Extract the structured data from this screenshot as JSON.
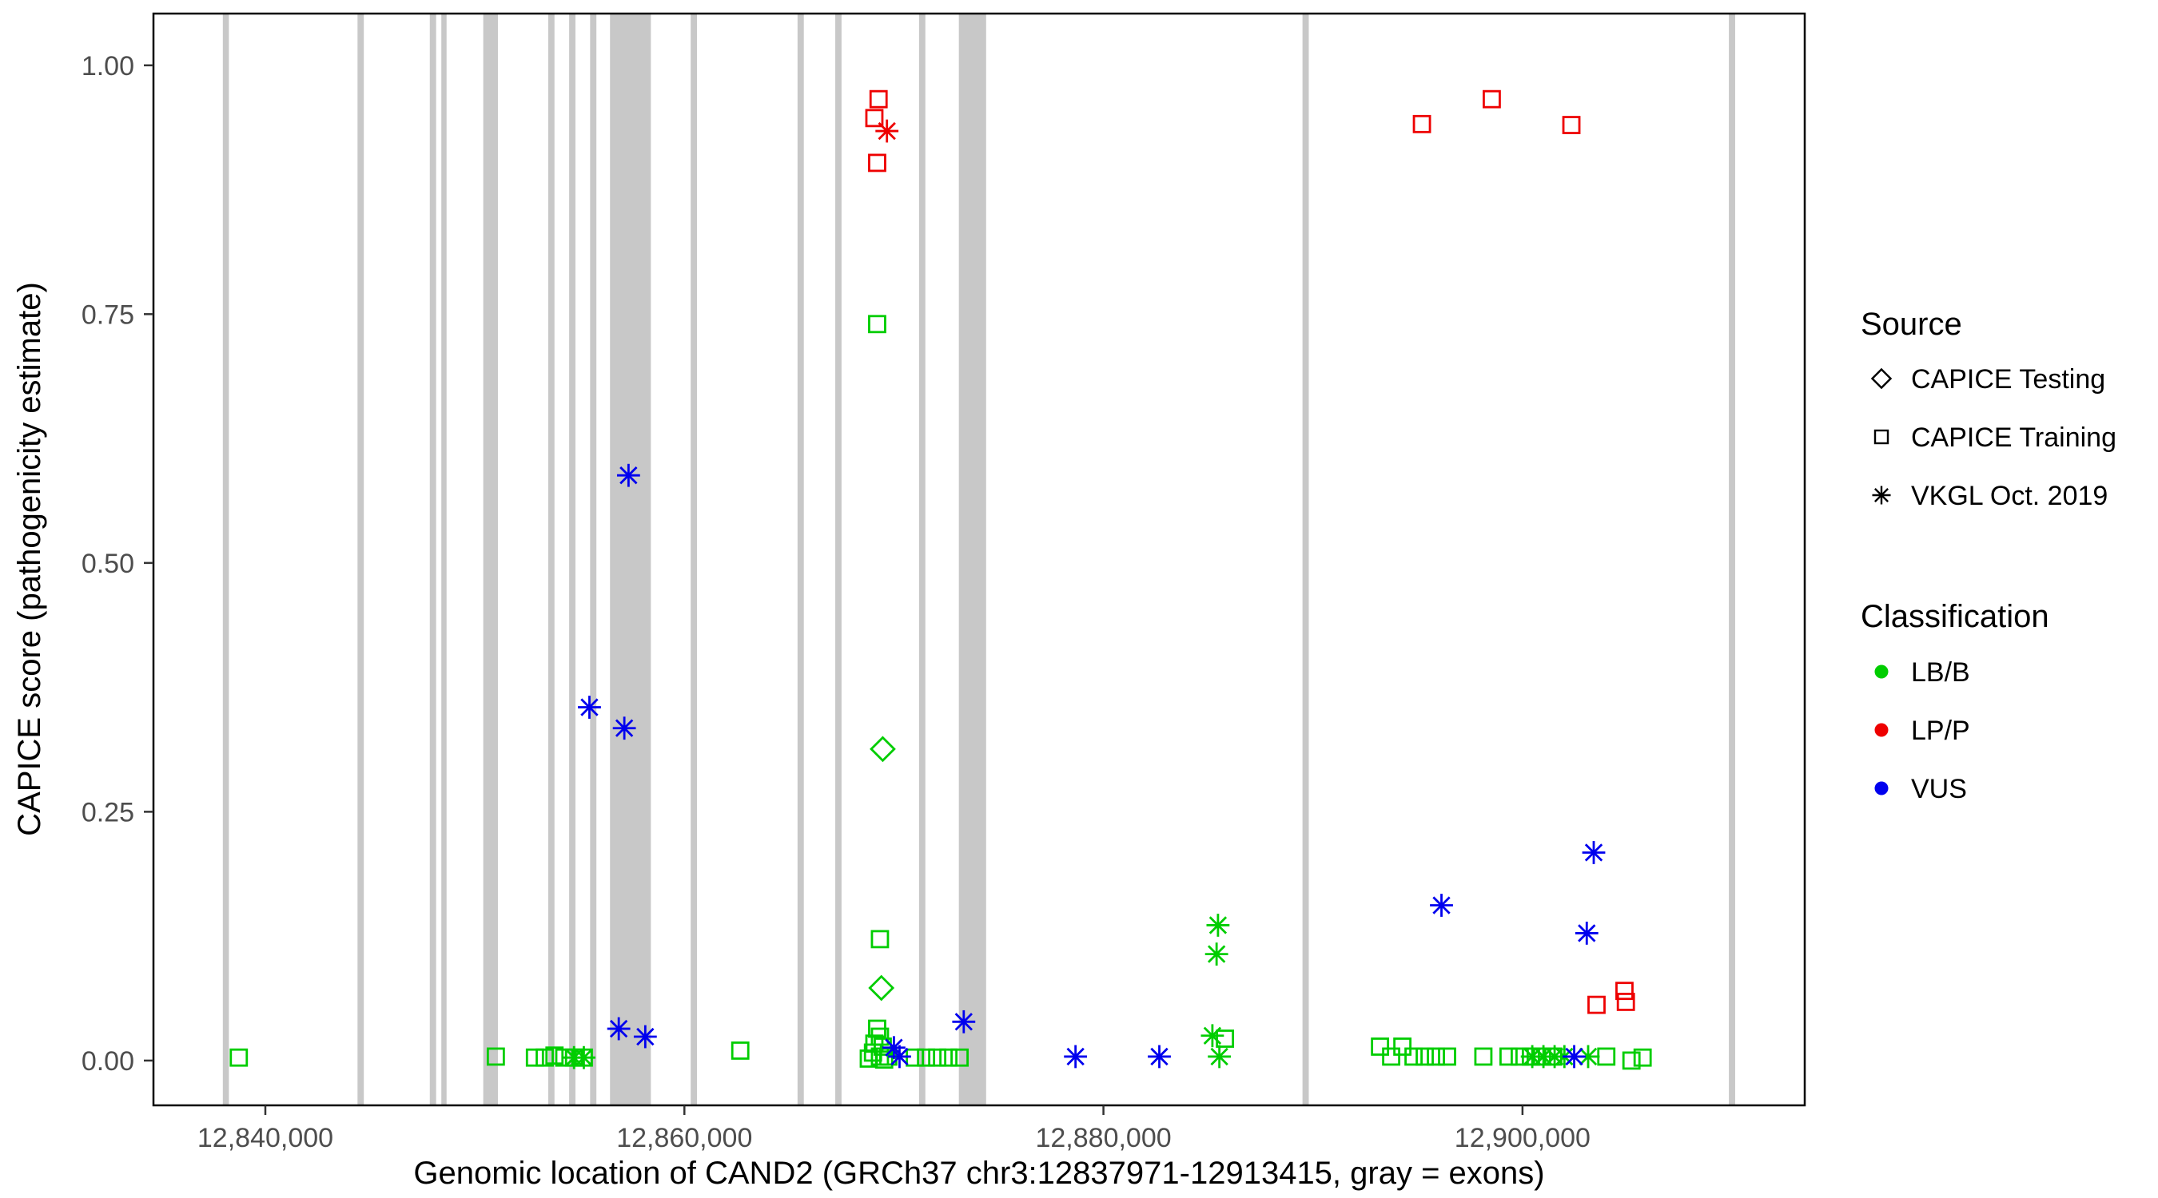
{
  "chart_data": {
    "type": "scatter",
    "title": "",
    "xlabel": "Genomic location of CAND2 (GRCh37 chr3:12837971-12913415, gray = exons)",
    "ylabel": "CAPICE score (pathogenicity estimate)",
    "xlim": [
      12834660,
      12913470
    ],
    "ylim": [
      -0.045,
      1.052
    ],
    "grid": "off",
    "exon_color": "#c8c8c8",
    "panel_border_color": "#000000",
    "x_ticks": [
      {
        "value": 12840000,
        "label": "12,840,000"
      },
      {
        "value": 12860000,
        "label": "12,860,000"
      },
      {
        "value": 12880000,
        "label": "12,880,000"
      },
      {
        "value": 12900000,
        "label": "12,900,000"
      }
    ],
    "y_ticks": [
      {
        "value": 0.0,
        "label": "0.00"
      },
      {
        "value": 0.25,
        "label": "0.25"
      },
      {
        "value": 0.5,
        "label": "0.50"
      },
      {
        "value": 0.75,
        "label": "0.75"
      },
      {
        "value": 1.0,
        "label": "1.00"
      }
    ],
    "exons": [
      [
        12837971,
        12838260
      ],
      [
        12844400,
        12844700
      ],
      [
        12847850,
        12848150
      ],
      [
        12848400,
        12848650
      ],
      [
        12850400,
        12851100
      ],
      [
        12853500,
        12853800
      ],
      [
        12854500,
        12854800
      ],
      [
        12855500,
        12855800
      ],
      [
        12856450,
        12858400
      ],
      [
        12860300,
        12860600
      ],
      [
        12865400,
        12865700
      ],
      [
        12867200,
        12867500
      ],
      [
        12871200,
        12871500
      ],
      [
        12873100,
        12874400
      ],
      [
        12889500,
        12889800
      ],
      [
        12909850,
        12910150
      ]
    ],
    "legend": {
      "source_title": "Source",
      "source_items": [
        {
          "label": "CAPICE Testing",
          "shape": "diamond"
        },
        {
          "label": "CAPICE Training",
          "shape": "square"
        },
        {
          "label": "VKGL Oct. 2019",
          "shape": "asterisk"
        }
      ],
      "classification_title": "Classification",
      "classification_items": [
        {
          "label": "LB/B",
          "color": "#00cd00"
        },
        {
          "label": "LP/P",
          "color": "#ee0000"
        },
        {
          "label": "VUS",
          "color": "#0000ee"
        }
      ]
    },
    "series": [
      {
        "name": "LB/B - CAPICE Training",
        "classification": "LB/B",
        "source": "CAPICE Training",
        "shape": "square",
        "color": "#00cd00",
        "points": [
          [
            12838733,
            0.003
          ],
          [
            12851000,
            0.004
          ],
          [
            12852867,
            0.003
          ],
          [
            12853333,
            0.003
          ],
          [
            12853800,
            0.005
          ],
          [
            12854267,
            0.003
          ],
          [
            12854733,
            0.003
          ],
          [
            12855200,
            0.003
          ],
          [
            12862667,
            0.01
          ],
          [
            12869200,
            0.74
          ],
          [
            12869333,
            0.122
          ],
          [
            12869200,
            0.032
          ],
          [
            12869333,
            0.024
          ],
          [
            12869067,
            0.017
          ],
          [
            12869467,
            0.014
          ],
          [
            12869000,
            0.008
          ],
          [
            12869333,
            0.004
          ],
          [
            12869733,
            0.004
          ],
          [
            12868800,
            0.002
          ],
          [
            12869533,
            0.001
          ],
          [
            12871000,
            0.003
          ],
          [
            12871533,
            0.003
          ],
          [
            12872067,
            0.003
          ],
          [
            12872600,
            0.003
          ],
          [
            12873133,
            0.003
          ],
          [
            12885800,
            0.022
          ],
          [
            12893200,
            0.014
          ],
          [
            12893733,
            0.004
          ],
          [
            12894267,
            0.014
          ],
          [
            12894800,
            0.004
          ],
          [
            12895333,
            0.004
          ],
          [
            12895867,
            0.004
          ],
          [
            12896400,
            0.004
          ],
          [
            12898133,
            0.004
          ],
          [
            12899333,
            0.004
          ],
          [
            12899867,
            0.004
          ],
          [
            12900400,
            0.004
          ],
          [
            12900933,
            0.004
          ],
          [
            12901467,
            0.004
          ],
          [
            12904000,
            0.004
          ],
          [
            12905200,
            0.0
          ],
          [
            12905733,
            0.003
          ]
        ]
      },
      {
        "name": "LB/B - CAPICE Testing",
        "classification": "LB/B",
        "source": "CAPICE Testing",
        "shape": "diamond",
        "color": "#00cd00",
        "points": [
          [
            12869467,
            0.313
          ],
          [
            12869400,
            0.073
          ]
        ]
      },
      {
        "name": "LB/B - VKGL Oct. 2019",
        "classification": "LB/B",
        "source": "VKGL Oct. 2019",
        "shape": "asterisk",
        "color": "#00cd00",
        "points": [
          [
            12854733,
            0.003
          ],
          [
            12855200,
            0.003
          ],
          [
            12885200,
            0.025
          ],
          [
            12885400,
            0.107
          ],
          [
            12885467,
            0.136
          ],
          [
            12885533,
            0.004
          ],
          [
            12900467,
            0.004
          ],
          [
            12901000,
            0.004
          ],
          [
            12901533,
            0.004
          ],
          [
            12902000,
            0.004
          ],
          [
            12903133,
            0.004
          ]
        ]
      },
      {
        "name": "LP/P - CAPICE Training",
        "classification": "LP/P",
        "source": "CAPICE Training",
        "shape": "square",
        "color": "#ee0000",
        "points": [
          [
            12869267,
            0.966
          ],
          [
            12869067,
            0.947
          ],
          [
            12869200,
            0.902
          ],
          [
            12895200,
            0.941
          ],
          [
            12898533,
            0.966
          ],
          [
            12902333,
            0.94
          ],
          [
            12903533,
            0.056
          ],
          [
            12904867,
            0.07
          ],
          [
            12904933,
            0.059
          ]
        ]
      },
      {
        "name": "LP/P - VKGL Oct. 2019",
        "classification": "LP/P",
        "source": "VKGL Oct. 2019",
        "shape": "asterisk",
        "color": "#ee0000",
        "points": [
          [
            12869667,
            0.934
          ]
        ]
      },
      {
        "name": "VUS - VKGL Oct. 2019",
        "classification": "VUS",
        "source": "VKGL Oct. 2019",
        "shape": "asterisk",
        "color": "#0000ee",
        "points": [
          [
            12857333,
            0.588
          ],
          [
            12855467,
            0.355
          ],
          [
            12857133,
            0.334
          ],
          [
            12856867,
            0.032
          ],
          [
            12858133,
            0.024
          ],
          [
            12870000,
            0.013
          ],
          [
            12870267,
            0.004
          ],
          [
            12873333,
            0.039
          ],
          [
            12878667,
            0.004
          ],
          [
            12882667,
            0.004
          ],
          [
            12896133,
            0.156
          ],
          [
            12903067,
            0.128
          ],
          [
            12903400,
            0.209
          ],
          [
            12902467,
            0.004
          ]
        ]
      }
    ]
  }
}
